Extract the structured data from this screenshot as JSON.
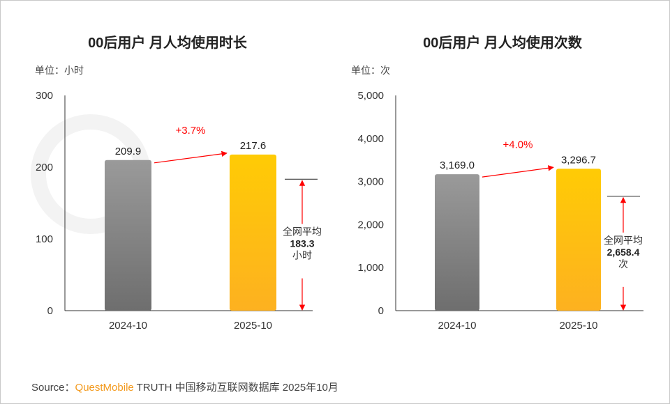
{
  "chart_data": [
    {
      "type": "bar",
      "title": "00后用户 月人均使用时长",
      "unit_label": "单位：小时",
      "categories": [
        "2024-10",
        "2025-10"
      ],
      "values": [
        209.9,
        217.6
      ],
      "value_labels": [
        "209.9",
        "217.6"
      ],
      "ylim": [
        0,
        300
      ],
      "yticks": [
        0,
        100,
        200,
        300
      ],
      "ytick_labels": [
        "0",
        "100",
        "200",
        "300"
      ],
      "growth_label": "+3.7%",
      "average": {
        "value": 183.3,
        "label_top": "全网平均",
        "label_value": "183.3",
        "label_unit": "小时"
      },
      "colors": [
        "#7a7a7a",
        "#fdb813"
      ]
    },
    {
      "type": "bar",
      "title": "00后用户 月人均使用次数",
      "unit_label": "单位：次",
      "categories": [
        "2024-10",
        "2025-10"
      ],
      "values": [
        3169.0,
        3296.7
      ],
      "value_labels": [
        "3,169.0",
        "3,296.7"
      ],
      "ylim": [
        0,
        5000
      ],
      "yticks": [
        0,
        1000,
        2000,
        3000,
        4000,
        5000
      ],
      "ytick_labels": [
        "0",
        "1,000",
        "2,000",
        "3,000",
        "4,000",
        "5,000"
      ],
      "growth_label": "+4.0%",
      "average": {
        "value": 2658.4,
        "label_top": "全网平均",
        "label_value": "2,658.4",
        "label_unit": "次"
      },
      "colors": [
        "#7a7a7a",
        "#fdb813"
      ]
    }
  ],
  "watermark": "QUESTMOBILE",
  "source": {
    "prefix": "Source：",
    "brand": "QuestMobile",
    "rest": " TRUTH 中国移动互联网数据库 2025年10月"
  }
}
